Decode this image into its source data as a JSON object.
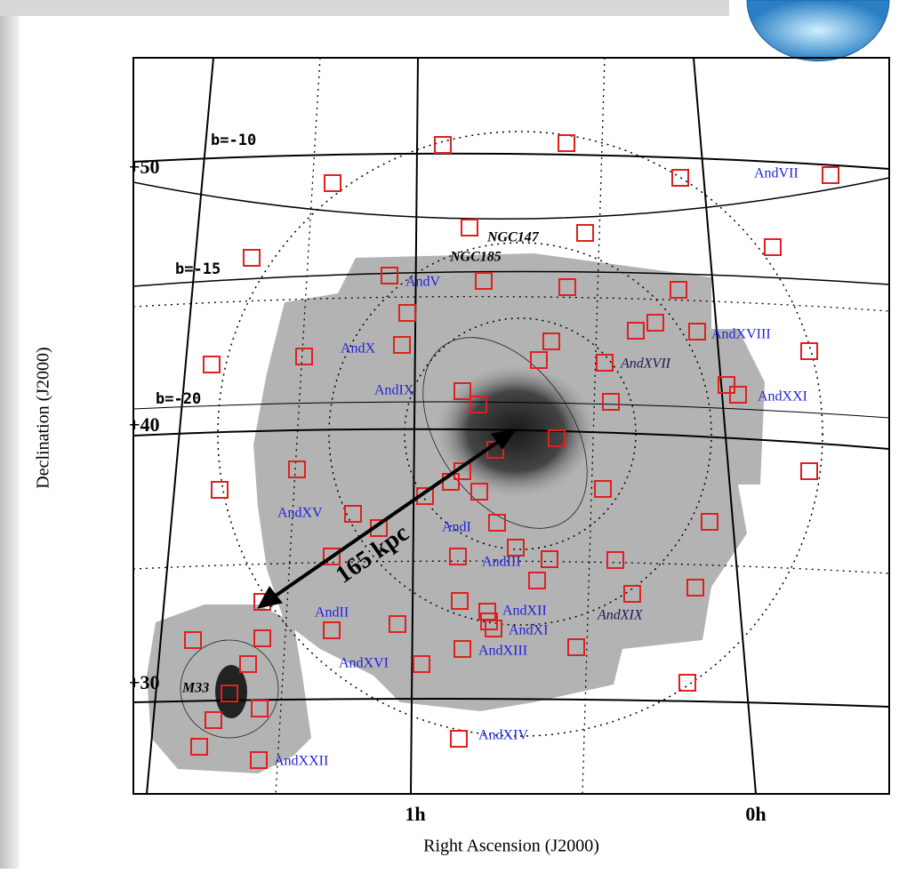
{
  "axes": {
    "y_title": "Declination (J2000)",
    "x_title": "Right Ascension (J2000)",
    "y_ticks": [
      "+50",
      "+40",
      "+30"
    ],
    "x_ticks": [
      "1h",
      "0h"
    ]
  },
  "galactic_latitude_labels": [
    "b=-10",
    "b=-15",
    "b=-20"
  ],
  "galaxies": [
    {
      "label": "NGC147"
    },
    {
      "label": "NGC185"
    },
    {
      "label": "AndV"
    },
    {
      "label": "AndX"
    },
    {
      "label": "AndIX"
    },
    {
      "label": "AndXVII"
    },
    {
      "label": "AndXVIII"
    },
    {
      "label": "AndXXI"
    },
    {
      "label": "AndVII"
    },
    {
      "label": "AndXV"
    },
    {
      "label": "AndI"
    },
    {
      "label": "AndIII"
    },
    {
      "label": "AndII"
    },
    {
      "label": "AndXII"
    },
    {
      "label": "AndXI"
    },
    {
      "label": "AndXIII"
    },
    {
      "label": "AndXIX"
    },
    {
      "label": "AndXVI"
    },
    {
      "label": "M33"
    },
    {
      "label": "AndXIV"
    },
    {
      "label": "AndXXII"
    }
  ],
  "scale_label": "165 kpc"
}
